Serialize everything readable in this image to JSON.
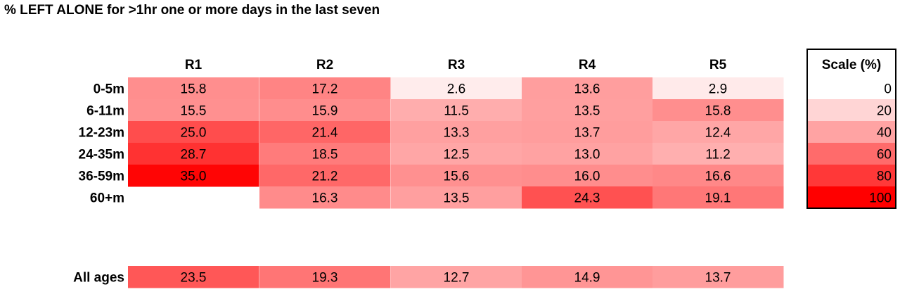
{
  "chart_data": {
    "type": "heatmap",
    "title": "% LEFT ALONE for >1hr one or more days in the last seven",
    "columns": [
      "R1",
      "R2",
      "R3",
      "R4",
      "R5"
    ],
    "rows": [
      "0-5m",
      "6-11m",
      "12-23m",
      "24-35m",
      "36-59m",
      "60+m"
    ],
    "values": [
      [
        15.8,
        17.2,
        2.6,
        13.6,
        2.9
      ],
      [
        15.5,
        15.9,
        11.5,
        13.5,
        15.8
      ],
      [
        25.0,
        21.4,
        13.3,
        13.7,
        12.4
      ],
      [
        28.7,
        18.5,
        12.5,
        13.0,
        11.2
      ],
      [
        35.0,
        21.2,
        15.6,
        16.0,
        16.6
      ],
      [
        null,
        16.3,
        13.5,
        24.3,
        19.1
      ]
    ],
    "labels": [
      [
        "15.8",
        "17.2",
        "2.6",
        "13.6",
        "2.9"
      ],
      [
        "15.5",
        "15.9",
        "11.5",
        "13.5",
        "15.8"
      ],
      [
        "25.0",
        "21.4",
        "13.3",
        "13.7",
        "12.4"
      ],
      [
        "28.7",
        "18.5",
        "12.5",
        "13.0",
        "11.2"
      ],
      [
        "35.0",
        "21.2",
        "15.6",
        "16.0",
        "16.6"
      ],
      [
        null,
        "16.3",
        "13.5",
        "24.3",
        "19.1"
      ]
    ],
    "summary_row": {
      "label": "All ages",
      "values": [
        23.5,
        19.3,
        12.7,
        14.9,
        13.7
      ],
      "labels": [
        "23.5",
        "19.3",
        "12.7",
        "14.9",
        "13.7"
      ]
    },
    "scale": {
      "title": "Scale (%)",
      "values": [
        0,
        20,
        40,
        60,
        80,
        100
      ],
      "labels": [
        "0",
        "20",
        "40",
        "60",
        "80",
        "100"
      ],
      "colors": [
        "#ffffff",
        "#ffd5d5",
        "#ffa3a3",
        "#ff6b6b",
        "#ff3838",
        "#ff0000"
      ]
    },
    "value_domain": [
      0,
      35
    ]
  }
}
